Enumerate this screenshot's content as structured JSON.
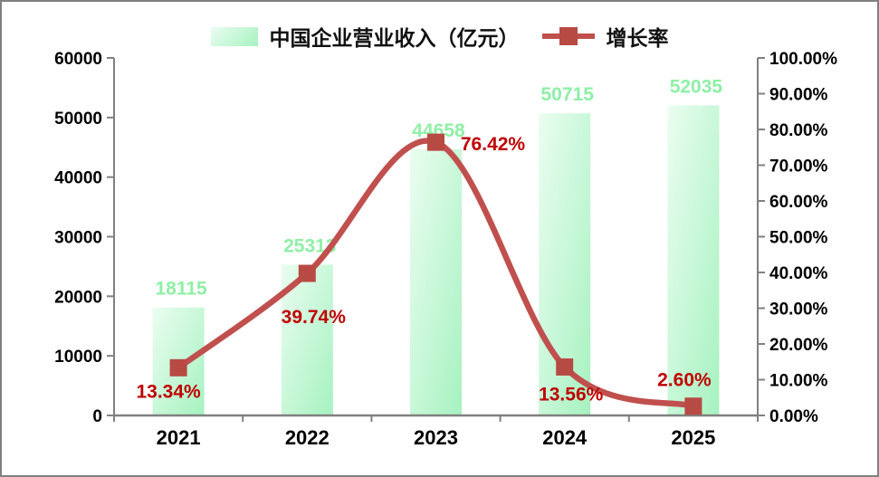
{
  "colors": {
    "bar_gradient_start": "#ebfdf1",
    "bar_gradient_end": "#a6f2c0",
    "bar_label": "#8ef0a6",
    "line": "#c0504d",
    "marker": "#b84a44",
    "pct_label": "#c00000",
    "axis": "#808080",
    "tick_text": "#000000",
    "frame_border": "#808080"
  },
  "legend": {
    "bar_series_label": "中国企业营业收入（亿元）",
    "line_series_label": "增长率"
  },
  "chart_data": {
    "type": "bar",
    "subtype": "combo bar+line, dual axis",
    "title": "",
    "categories": [
      "2021",
      "2022",
      "2023",
      "2024",
      "2025"
    ],
    "series": [
      {
        "name": "中国企业营业收入（亿元）",
        "type": "bar",
        "axis": "left",
        "values": [
          18115,
          25313,
          44658,
          50715,
          52035
        ],
        "labels": [
          "18115",
          "25313",
          "44658",
          "50715",
          "52035"
        ]
      },
      {
        "name": "增长率",
        "type": "line",
        "axis": "right",
        "values": [
          13.34,
          39.74,
          76.42,
          13.56,
          2.6
        ],
        "labels": [
          "13.34%",
          "39.74%",
          "76.42%",
          "13.56%",
          "2.60%"
        ]
      }
    ],
    "left_axis": {
      "min": 0,
      "max": 60000,
      "step": 10000,
      "tick_labels": [
        "0",
        "10000",
        "20000",
        "30000",
        "40000",
        "50000",
        "60000"
      ]
    },
    "right_axis": {
      "min": 0,
      "max": 100,
      "step": 10,
      "tick_labels": [
        "0.00%",
        "10.00%",
        "20.00%",
        "30.00%",
        "40.00%",
        "50.00%",
        "60.00%",
        "70.00%",
        "80.00%",
        "90.00%",
        "100.00%"
      ]
    },
    "legend_position": "top",
    "grid": false,
    "smooth_line": true
  }
}
